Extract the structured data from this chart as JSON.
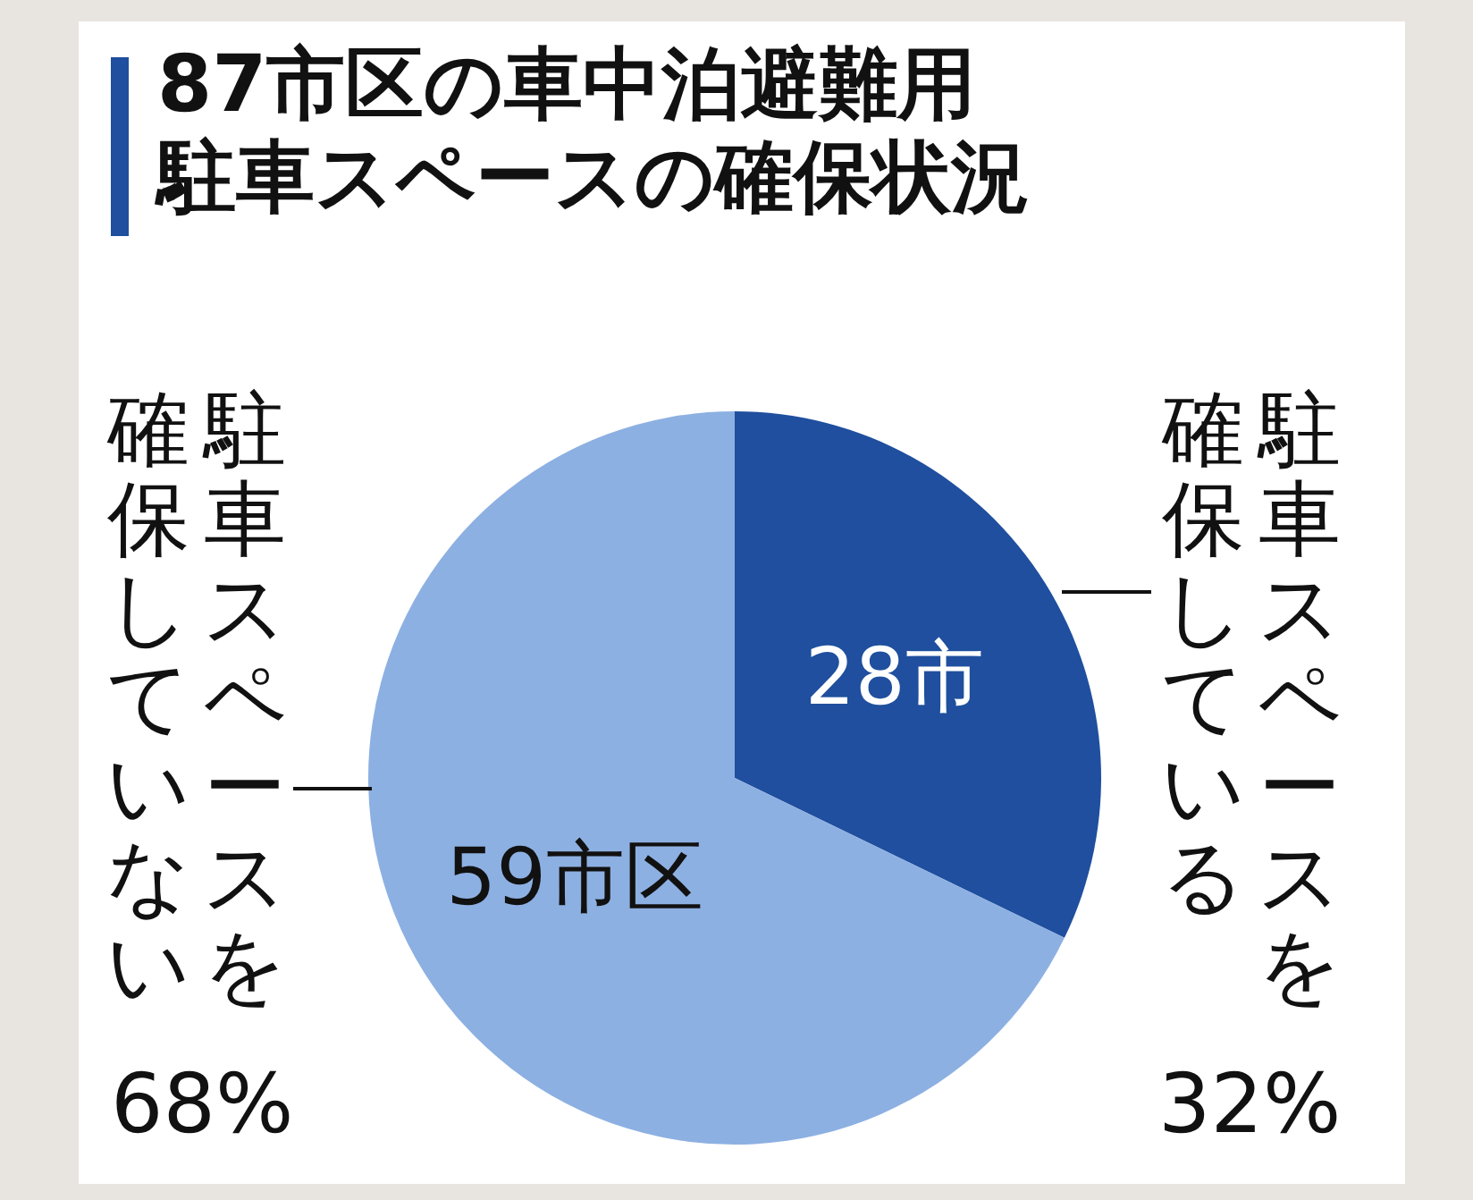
{
  "chart_data": {
    "type": "pie",
    "title": "87市区の車中泊避難用",
    "subtitle": "駐車スペースの確保状況",
    "categories": [
      "駐車スペースを確保している",
      "駐車スペースを確保していない"
    ],
    "values": [
      28,
      59
    ],
    "colors": [
      "#1f4f9e",
      "#8db0e2"
    ],
    "value_labels": [
      "28市",
      "59市区"
    ],
    "annotations": [
      "32%",
      "68%"
    ],
    "legend": false
  }
}
